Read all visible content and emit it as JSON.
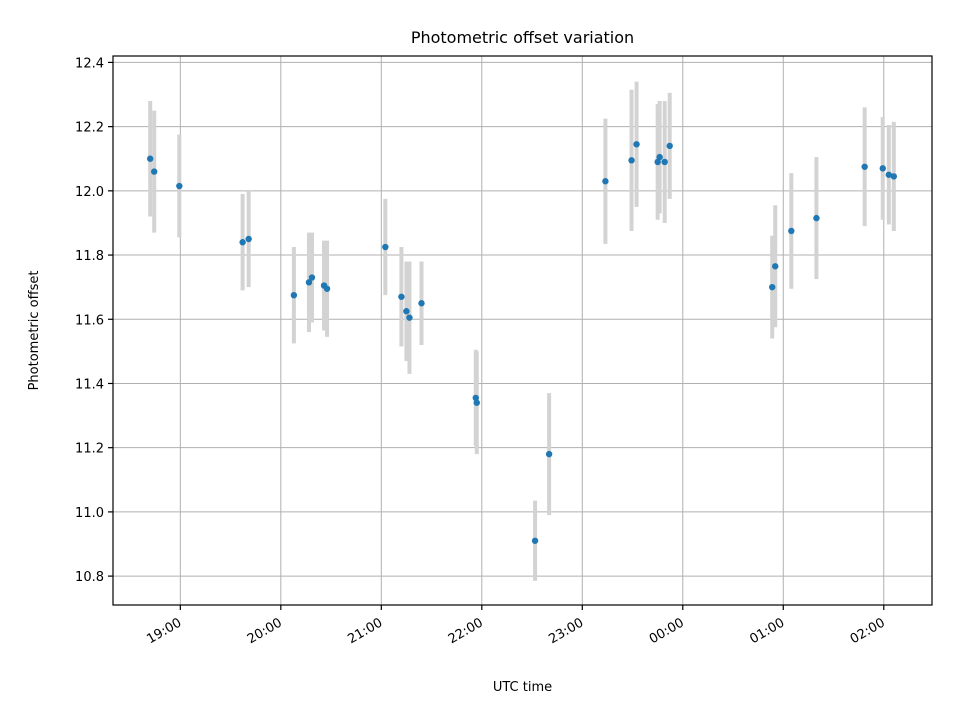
{
  "chart_data": {
    "type": "scatter",
    "title": "Photometric offset variation",
    "xlabel": "UTC time",
    "ylabel": "Photometric offset",
    "x_unit": "hours after 00:00 UTC of first night (values above 24 are the following day)",
    "xlim": [
      18.33,
      26.48
    ],
    "ylim": [
      10.71,
      12.42
    ],
    "x_ticks": [
      {
        "value": 19,
        "label": "19:00"
      },
      {
        "value": 20,
        "label": "20:00"
      },
      {
        "value": 21,
        "label": "21:00"
      },
      {
        "value": 22,
        "label": "22:00"
      },
      {
        "value": 23,
        "label": "23:00"
      },
      {
        "value": 24,
        "label": "00:00"
      },
      {
        "value": 25,
        "label": "01:00"
      },
      {
        "value": 26,
        "label": "02:00"
      }
    ],
    "y_ticks": [
      {
        "value": 10.8,
        "label": "10.8"
      },
      {
        "value": 11.0,
        "label": "11.0"
      },
      {
        "value": 11.2,
        "label": "11.2"
      },
      {
        "value": 11.4,
        "label": "11.4"
      },
      {
        "value": 11.6,
        "label": "11.6"
      },
      {
        "value": 11.8,
        "label": "11.8"
      },
      {
        "value": 12.0,
        "label": "12.0"
      },
      {
        "value": 12.2,
        "label": "12.2"
      },
      {
        "value": 12.4,
        "label": "12.4"
      }
    ],
    "grid": true,
    "x_tick_rotation_deg": 30,
    "colors": {
      "marker": "#1f77b4",
      "errorbar": "#d3d3d3",
      "grid": "#b0b0b0",
      "frame": "#000000"
    },
    "points": [
      {
        "x": 18.7,
        "y": 12.1,
        "err": 0.18
      },
      {
        "x": 18.74,
        "y": 12.06,
        "err": 0.19
      },
      {
        "x": 18.99,
        "y": 12.015,
        "err": 0.16
      },
      {
        "x": 19.62,
        "y": 11.84,
        "err": 0.15
      },
      {
        "x": 19.68,
        "y": 11.85,
        "err": 0.15
      },
      {
        "x": 20.13,
        "y": 11.675,
        "err": 0.15
      },
      {
        "x": 20.28,
        "y": 11.715,
        "err": 0.155
      },
      {
        "x": 20.31,
        "y": 11.73,
        "err": 0.14
      },
      {
        "x": 20.43,
        "y": 11.705,
        "err": 0.14
      },
      {
        "x": 20.46,
        "y": 11.695,
        "err": 0.15
      },
      {
        "x": 21.04,
        "y": 11.825,
        "err": 0.15
      },
      {
        "x": 21.2,
        "y": 11.67,
        "err": 0.155
      },
      {
        "x": 21.25,
        "y": 11.625,
        "err": 0.155
      },
      {
        "x": 21.28,
        "y": 11.605,
        "err": 0.175
      },
      {
        "x": 21.4,
        "y": 11.65,
        "err": 0.13
      },
      {
        "x": 21.94,
        "y": 11.355,
        "err": 0.15
      },
      {
        "x": 21.95,
        "y": 11.34,
        "err": 0.16
      },
      {
        "x": 22.53,
        "y": 10.91,
        "err": 0.125
      },
      {
        "x": 22.67,
        "y": 11.18,
        "err": 0.19
      },
      {
        "x": 23.23,
        "y": 12.03,
        "err": 0.195
      },
      {
        "x": 23.49,
        "y": 12.095,
        "err": 0.22
      },
      {
        "x": 23.54,
        "y": 12.145,
        "err": 0.195
      },
      {
        "x": 23.75,
        "y": 12.09,
        "err": 0.18
      },
      {
        "x": 23.77,
        "y": 12.105,
        "err": 0.175
      },
      {
        "x": 23.82,
        "y": 12.09,
        "err": 0.19
      },
      {
        "x": 23.87,
        "y": 12.14,
        "err": 0.165
      },
      {
        "x": 24.89,
        "y": 11.7,
        "err": 0.16
      },
      {
        "x": 24.92,
        "y": 11.765,
        "err": 0.19
      },
      {
        "x": 25.08,
        "y": 11.875,
        "err": 0.18
      },
      {
        "x": 25.33,
        "y": 11.915,
        "err": 0.19
      },
      {
        "x": 25.81,
        "y": 12.075,
        "err": 0.185
      },
      {
        "x": 25.99,
        "y": 12.07,
        "err": 0.16
      },
      {
        "x": 26.05,
        "y": 12.05,
        "err": 0.155
      },
      {
        "x": 26.1,
        "y": 12.045,
        "err": 0.17
      }
    ]
  }
}
